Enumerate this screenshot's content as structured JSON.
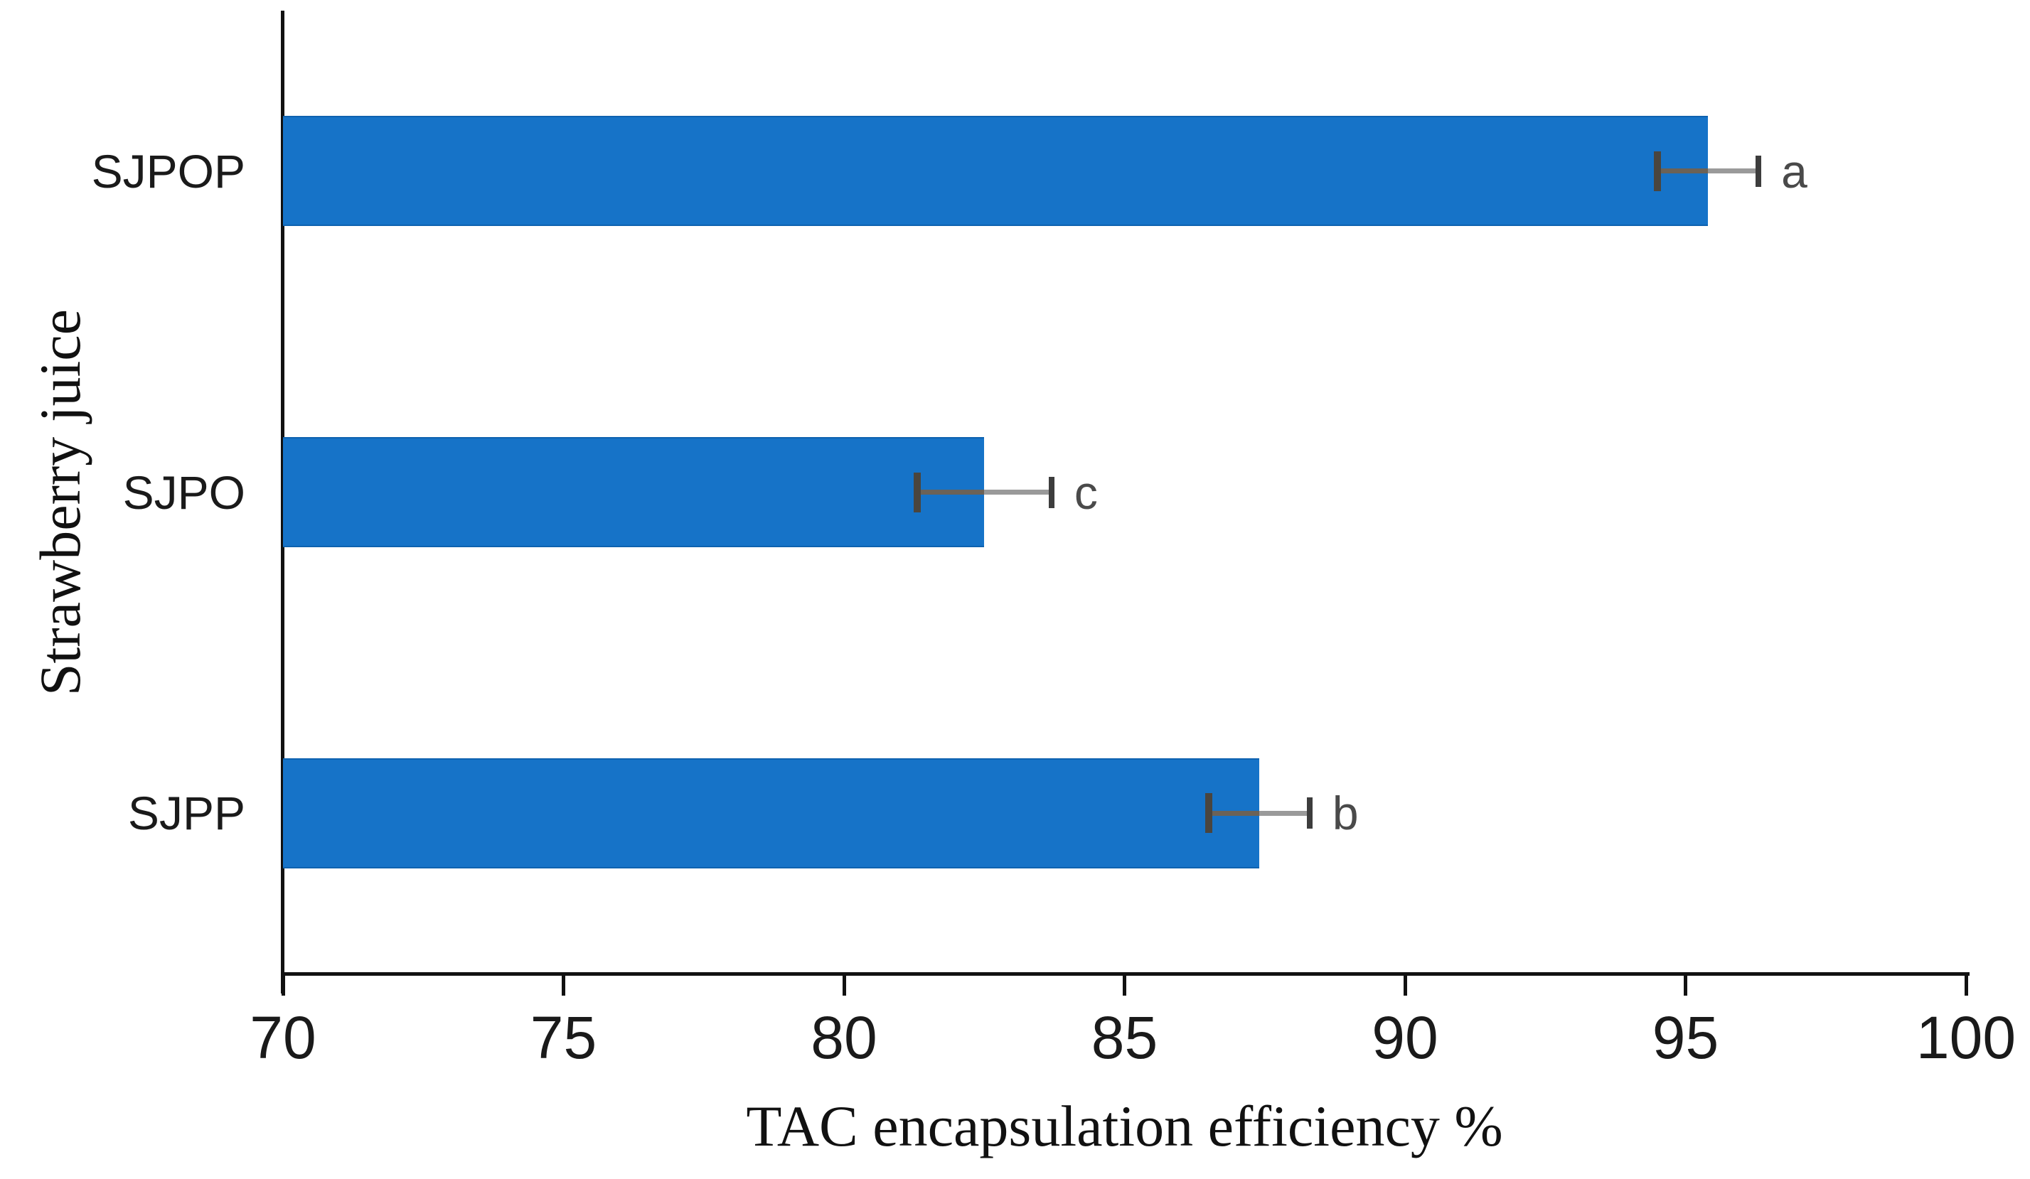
{
  "chart_data": {
    "type": "bar",
    "orientation": "horizontal",
    "title": "",
    "xlabel": "TAC encapsulation efficiency %",
    "ylabel": "Strawberry juice",
    "categories": [
      "SJPOP",
      "SJPO",
      "SJPP"
    ],
    "series": [
      {
        "name": "TAC encapsulation efficiency",
        "values": [
          95.4,
          82.5,
          87.4
        ],
        "errors": [
          0.9,
          1.2,
          0.9
        ],
        "sig_letters": [
          "a",
          "c",
          "b"
        ]
      }
    ],
    "xlim": [
      70,
      100
    ],
    "xticks": [
      70,
      75,
      80,
      85,
      90,
      95,
      100
    ],
    "grid": false,
    "legend": false,
    "colors": {
      "bar": "#1673C8",
      "error_line": "#9a9a9a",
      "error_cap": "#474747",
      "sig_letter": "#4a4a4a",
      "axis": "#111111"
    }
  }
}
